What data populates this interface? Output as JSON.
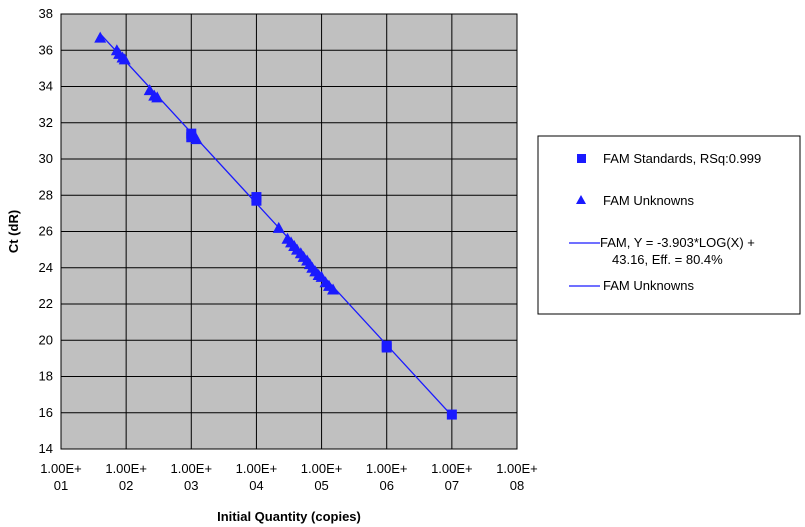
{
  "colors": {
    "plot_background": "#c0c0c0",
    "series": "#1a1aff",
    "grid": "#000000"
  },
  "chart_data": {
    "type": "scatter",
    "xlabel": "Initial Quantity (copies)",
    "ylabel": "Ct (dR)",
    "x_scale": "log",
    "xlim": [
      10,
      100000000
    ],
    "ylim": [
      14,
      38
    ],
    "grid": true,
    "legend_position": "right",
    "x_ticks": [
      {
        "value": 10,
        "line1": "1.00E+",
        "line2": "01"
      },
      {
        "value": 100,
        "line1": "1.00E+",
        "line2": "02"
      },
      {
        "value": 1000,
        "line1": "1.00E+",
        "line2": "03"
      },
      {
        "value": 10000,
        "line1": "1.00E+",
        "line2": "04"
      },
      {
        "value": 100000,
        "line1": "1.00E+",
        "line2": "05"
      },
      {
        "value": 1000000,
        "line1": "1.00E+",
        "line2": "06"
      },
      {
        "value": 10000000,
        "line1": "1.00E+",
        "line2": "07"
      },
      {
        "value": 100000000,
        "line1": "1.00E+",
        "line2": "08"
      }
    ],
    "y_ticks": [
      "14",
      "16",
      "18",
      "20",
      "22",
      "24",
      "26",
      "28",
      "30",
      "32",
      "34",
      "36",
      "38"
    ],
    "series": [
      {
        "name": "FAM Standards, RSq:0.999",
        "marker": "square",
        "points": [
          {
            "x": 1000,
            "y": 31.4
          },
          {
            "x": 1000,
            "y": 31.2
          },
          {
            "x": 10000,
            "y": 27.9
          },
          {
            "x": 10000,
            "y": 27.7
          },
          {
            "x": 1000000,
            "y": 19.7
          },
          {
            "x": 1000000,
            "y": 19.6
          },
          {
            "x": 10000000,
            "y": 15.9
          }
        ]
      },
      {
        "name": "FAM Unknowns",
        "marker": "triangle",
        "points": [
          {
            "x": 40,
            "y": 36.7
          },
          {
            "x": 72,
            "y": 36.0
          },
          {
            "x": 78,
            "y": 35.8
          },
          {
            "x": 88,
            "y": 35.6
          },
          {
            "x": 95,
            "y": 35.5
          },
          {
            "x": 230,
            "y": 33.8
          },
          {
            "x": 270,
            "y": 33.5
          },
          {
            "x": 300,
            "y": 33.4
          },
          {
            "x": 1200,
            "y": 31.1
          },
          {
            "x": 22000,
            "y": 26.2
          },
          {
            "x": 30000,
            "y": 25.6
          },
          {
            "x": 34000,
            "y": 25.4
          },
          {
            "x": 38000,
            "y": 25.2
          },
          {
            "x": 42000,
            "y": 25.0
          },
          {
            "x": 48000,
            "y": 24.8
          },
          {
            "x": 53000,
            "y": 24.6
          },
          {
            "x": 60000,
            "y": 24.4
          },
          {
            "x": 66000,
            "y": 24.2
          },
          {
            "x": 72000,
            "y": 24.0
          },
          {
            "x": 80000,
            "y": 23.8
          },
          {
            "x": 90000,
            "y": 23.6
          },
          {
            "x": 100000,
            "y": 23.5
          },
          {
            "x": 115000,
            "y": 23.2
          },
          {
            "x": 130000,
            "y": 23.0
          },
          {
            "x": 150000,
            "y": 22.8
          }
        ]
      }
    ],
    "fit_lines": [
      {
        "name": "FAM, Y = -3.903*LOG(X) + 43.16, Eff. = 80.4%",
        "name_line1": "FAM, Y = -3.903*LOG(X) +",
        "name_line2": "43.16, Eff. = 80.4%",
        "slope": -3.903,
        "intercept": 43.16,
        "x_range": [
          40,
          10000000
        ]
      },
      {
        "name": "FAM Unknowns"
      }
    ]
  }
}
